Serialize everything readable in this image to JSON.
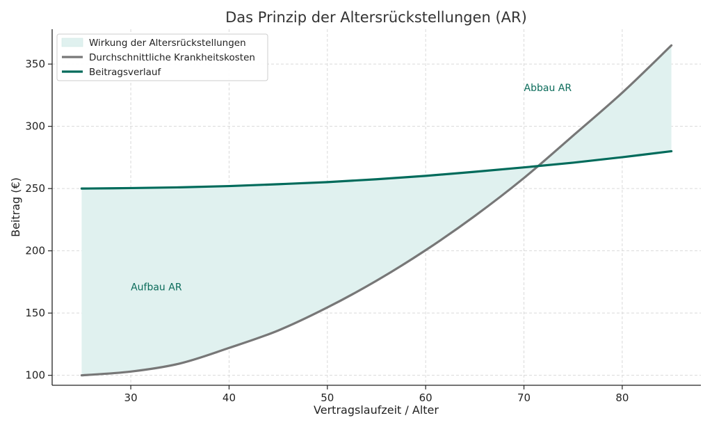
{
  "chart_data": {
    "type": "line",
    "title": "Das Prinzip der Altersrückstellungen (AR)",
    "xlabel": "Vertragslaufzeit / Alter",
    "ylabel": "Beitrag (€)",
    "xlim": [
      22,
      88
    ],
    "ylim": [
      92,
      378
    ],
    "xticks": [
      30,
      40,
      50,
      60,
      70,
      80
    ],
    "yticks": [
      100,
      150,
      200,
      250,
      300,
      350
    ],
    "grid": true,
    "legend_position": "top-left",
    "x": [
      25,
      30,
      35,
      40,
      45,
      50,
      55,
      60,
      65,
      70,
      75,
      80,
      85
    ],
    "series": [
      {
        "name": "Durchschnittliche Krankheitskosten",
        "color": "#777777",
        "values": [
          100,
          103,
          109.5,
          122,
          136,
          154.5,
          176,
          200.5,
          228,
          258.5,
          292.5,
          327,
          365
        ]
      },
      {
        "name": "Beitragsverlauf",
        "color": "#006b5b",
        "values": [
          250,
          250.4,
          251,
          252,
          253.5,
          255.2,
          257.5,
          260.2,
          263.5,
          267,
          270.8,
          275.2,
          280
        ]
      }
    ],
    "fill": {
      "name": "Wirkung der Altersrückstellungen",
      "between": [
        "Durchschnittliche Krankheitskosten",
        "Beitragsverlauf"
      ],
      "color": "#e0f1ef"
    },
    "annotations": [
      {
        "text": "Aufbau AR",
        "x": 30,
        "y": 171,
        "color": "#0a6b5a"
      },
      {
        "text": "Abbau AR",
        "x": 70,
        "y": 331,
        "color": "#0a6b5a"
      }
    ]
  }
}
